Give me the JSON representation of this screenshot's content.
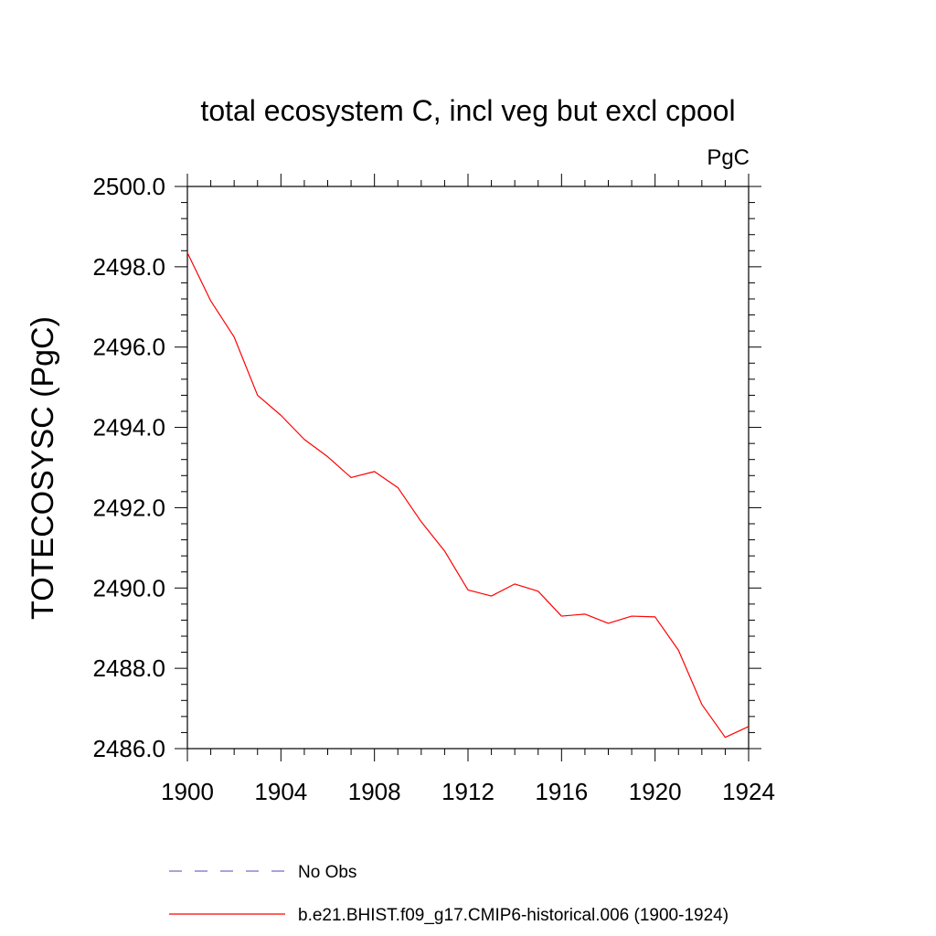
{
  "chart_data": {
    "type": "line",
    "title": "total ecosystem C, incl veg but excl cpool",
    "units": "PgC",
    "ylabel": "TOTECOSYSC  (PgC)",
    "xlabel": "",
    "xlim": [
      1900,
      1924
    ],
    "ylim": [
      2486.0,
      2500.0
    ],
    "x_ticks": [
      1900,
      1904,
      1908,
      1912,
      1916,
      1920,
      1924
    ],
    "x_tick_labels": [
      "1900",
      "1904",
      "1908",
      "1912",
      "1916",
      "1920",
      "1924"
    ],
    "y_ticks": [
      2486.0,
      2488.0,
      2490.0,
      2492.0,
      2494.0,
      2496.0,
      2498.0,
      2500.0
    ],
    "y_tick_labels": [
      "2486.0",
      "2488.0",
      "2490.0",
      "2492.0",
      "2494.0",
      "2496.0",
      "2498.0",
      "2500.0"
    ],
    "grid": false,
    "legend_position": "bottom",
    "series": [
      {
        "name": "No Obs",
        "color": "#7b68c8",
        "dash": "dashed",
        "x": [],
        "values": []
      },
      {
        "name": "b.e21.BHIST.f09_g17.CMIP6-historical.006 (1900-1924)",
        "color": "#ff0000",
        "dash": "solid",
        "x": [
          1900,
          1901,
          1902,
          1903,
          1904,
          1905,
          1906,
          1907,
          1908,
          1909,
          1910,
          1911,
          1912,
          1913,
          1914,
          1915,
          1916,
          1917,
          1918,
          1919,
          1920,
          1921,
          1922,
          1923,
          1924
        ],
        "values": [
          2498.35,
          2497.15,
          2496.25,
          2494.8,
          2494.3,
          2493.7,
          2493.27,
          2492.75,
          2492.9,
          2492.5,
          2491.65,
          2490.92,
          2489.95,
          2489.8,
          2490.1,
          2489.92,
          2489.3,
          2489.35,
          2489.12,
          2489.3,
          2489.28,
          2488.45,
          2487.1,
          2486.28,
          2486.55
        ]
      }
    ]
  }
}
